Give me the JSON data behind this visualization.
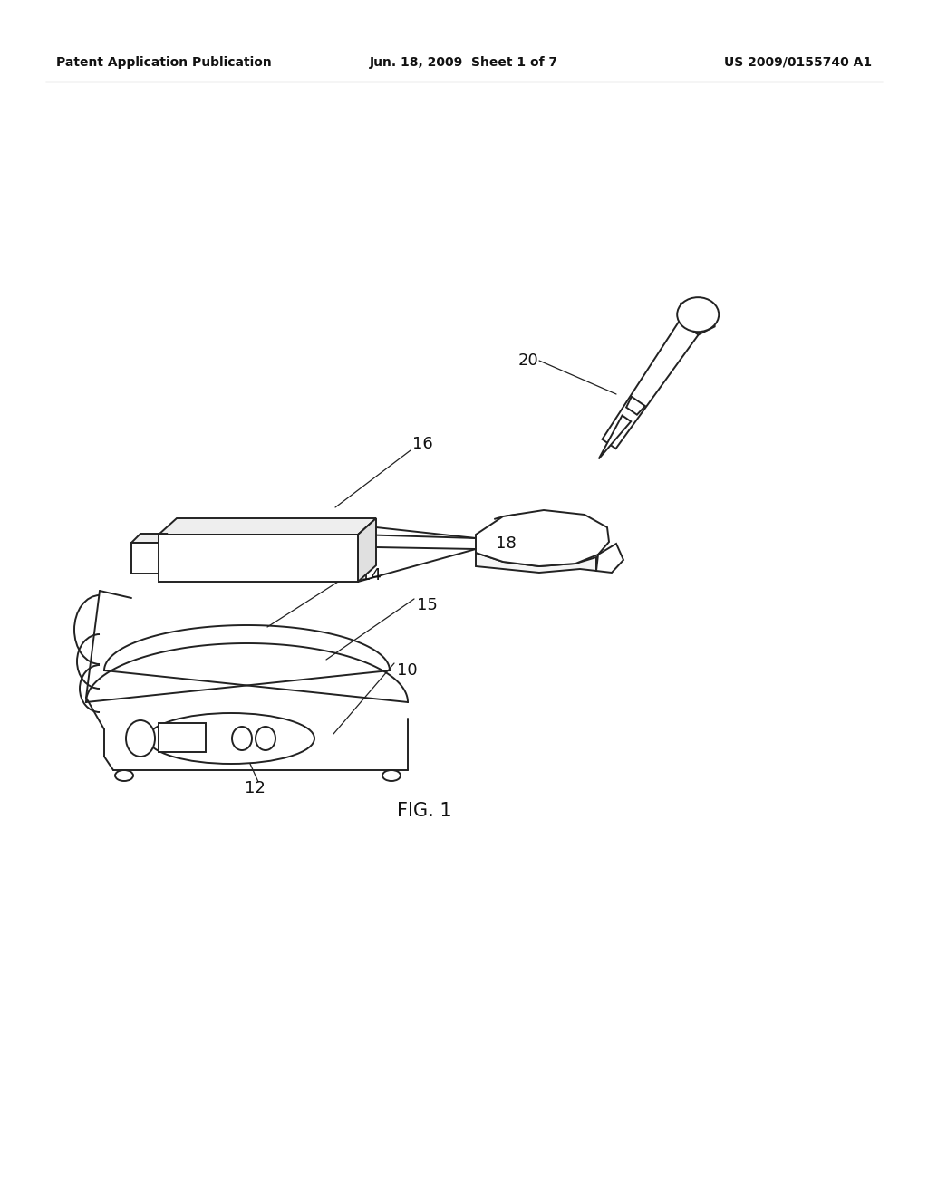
{
  "bg_color": "#ffffff",
  "line_color": "#222222",
  "header_left": "Patent Application Publication",
  "header_center": "Jun. 18, 2009  Sheet 1 of 7",
  "header_right": "US 2009/0155740 A1",
  "fig_label": "FIG. 1",
  "label_fs": 13,
  "header_fs": 10
}
